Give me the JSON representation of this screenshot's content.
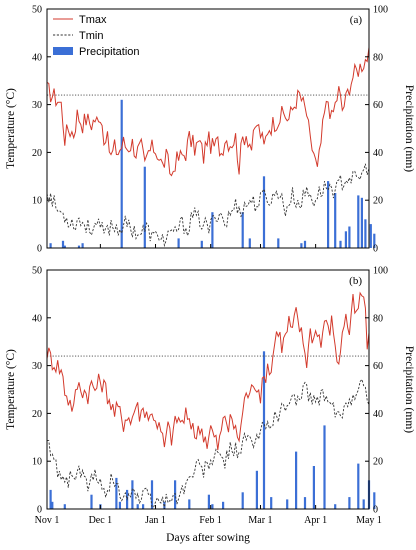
{
  "chart_data": [
    {
      "type": "line",
      "panel_label": "(a)",
      "ylabel": "Temperature (°C)",
      "y2label": "Precipitation (mm)",
      "ylim": [
        0,
        50
      ],
      "y2lim": [
        0,
        100
      ],
      "yticks": [
        "0",
        "10",
        "20",
        "30",
        "40",
        "50"
      ],
      "y2ticks": [
        "0",
        "20",
        "40",
        "60",
        "80",
        "100"
      ],
      "legend": [
        {
          "label": "Tmax",
          "color": "#d33a2c",
          "style": "solid"
        },
        {
          "label": "Tmin",
          "color": "#333333",
          "style": "dashed"
        },
        {
          "label": "Precipitation",
          "color": "#3b6fd6",
          "style": "bar"
        }
      ],
      "legend_position": "top-left",
      "reference_line": 32,
      "tmax_keypoints": [
        [
          0,
          33
        ],
        [
          3,
          32
        ],
        [
          6,
          31
        ],
        [
          8,
          30
        ],
        [
          10,
          23
        ],
        [
          12,
          25
        ],
        [
          15,
          24
        ],
        [
          17,
          28
        ],
        [
          20,
          26
        ],
        [
          22,
          27
        ],
        [
          25,
          26
        ],
        [
          27,
          27
        ],
        [
          29,
          26
        ],
        [
          30,
          28
        ],
        [
          31,
          27
        ],
        [
          32,
          22
        ],
        [
          33,
          24
        ],
        [
          36,
          19
        ],
        [
          38,
          21
        ],
        [
          40,
          20
        ],
        [
          43,
          22
        ],
        [
          45,
          21
        ],
        [
          48,
          22
        ],
        [
          50,
          20
        ],
        [
          53,
          21
        ],
        [
          55,
          17
        ],
        [
          57,
          20
        ],
        [
          60,
          21
        ],
        [
          62,
          20
        ],
        [
          65,
          17
        ],
        [
          67,
          19
        ],
        [
          70,
          15
        ],
        [
          72,
          18
        ],
        [
          75,
          19
        ],
        [
          78,
          20
        ],
        [
          80,
          23
        ],
        [
          83,
          21
        ],
        [
          86,
          22
        ],
        [
          88,
          19
        ],
        [
          90,
          23
        ],
        [
          93,
          21
        ],
        [
          96,
          22
        ],
        [
          98,
          20
        ],
        [
          100,
          23
        ],
        [
          103,
          22
        ],
        [
          106,
          23
        ],
        [
          108,
          17
        ],
        [
          110,
          23
        ],
        [
          112,
          24
        ],
        [
          115,
          21
        ],
        [
          118,
          26
        ],
        [
          120,
          24
        ],
        [
          122,
          21
        ],
        [
          124,
          25
        ],
        [
          127,
          26
        ],
        [
          130,
          27
        ],
        [
          133,
          28
        ],
        [
          136,
          27
        ],
        [
          138,
          29
        ],
        [
          140,
          31
        ],
        [
          142,
          32
        ],
        [
          144,
          30
        ],
        [
          146,
          28
        ],
        [
          148,
          22
        ],
        [
          150,
          20
        ],
        [
          152,
          16
        ],
        [
          154,
          22
        ],
        [
          156,
          28
        ],
        [
          158,
          31
        ],
        [
          160,
          27
        ],
        [
          162,
          30
        ],
        [
          164,
          33
        ],
        [
          166,
          29
        ],
        [
          168,
          31
        ],
        [
          170,
          34
        ],
        [
          172,
          36
        ],
        [
          174,
          37
        ],
        [
          176,
          38
        ],
        [
          178,
          39
        ],
        [
          180,
          40
        ]
      ],
      "tmin_keypoints": [
        [
          0,
          12
        ],
        [
          3,
          10
        ],
        [
          6,
          8
        ],
        [
          9,
          7
        ],
        [
          12,
          6
        ],
        [
          15,
          5
        ],
        [
          18,
          6
        ],
        [
          21,
          5
        ],
        [
          24,
          4
        ],
        [
          27,
          5
        ],
        [
          30,
          4
        ],
        [
          33,
          3
        ],
        [
          36,
          5
        ],
        [
          40,
          4
        ],
        [
          44,
          5
        ],
        [
          48,
          4
        ],
        [
          52,
          3
        ],
        [
          56,
          4
        ],
        [
          60,
          2
        ],
        [
          64,
          3
        ],
        [
          66,
          1
        ],
        [
          68,
          3
        ],
        [
          70,
          2
        ],
        [
          73,
          4
        ],
        [
          76,
          5
        ],
        [
          79,
          4
        ],
        [
          82,
          7
        ],
        [
          85,
          6
        ],
        [
          88,
          5
        ],
        [
          91,
          4
        ],
        [
          94,
          6
        ],
        [
          97,
          8
        ],
        [
          100,
          5
        ],
        [
          103,
          7
        ],
        [
          106,
          9
        ],
        [
          110,
          8
        ],
        [
          114,
          10
        ],
        [
          118,
          9
        ],
        [
          122,
          11
        ],
        [
          126,
          10
        ],
        [
          130,
          12
        ],
        [
          134,
          8
        ],
        [
          138,
          11
        ],
        [
          142,
          9
        ],
        [
          146,
          12
        ],
        [
          150,
          10
        ],
        [
          154,
          12
        ],
        [
          158,
          13
        ],
        [
          162,
          12
        ],
        [
          166,
          14
        ],
        [
          170,
          15
        ],
        [
          174,
          14
        ],
        [
          178,
          16
        ],
        [
          180,
          17
        ]
      ],
      "precip_mm": [
        [
          2,
          2
        ],
        [
          9,
          3
        ],
        [
          10,
          1
        ],
        [
          18,
          1
        ],
        [
          20,
          2
        ],
        [
          42,
          62
        ],
        [
          55,
          34
        ],
        [
          74,
          4
        ],
        [
          87,
          3
        ],
        [
          93,
          15
        ],
        [
          110,
          15
        ],
        [
          114,
          4
        ],
        [
          122,
          30
        ],
        [
          130,
          4
        ],
        [
          143,
          2
        ],
        [
          145,
          3
        ],
        [
          158,
          28
        ],
        [
          162,
          23
        ],
        [
          165,
          3
        ],
        [
          168,
          7
        ],
        [
          170,
          9
        ],
        [
          175,
          22
        ],
        [
          177,
          21
        ],
        [
          179,
          12
        ],
        [
          182,
          10
        ],
        [
          184,
          6
        ]
      ]
    },
    {
      "type": "line",
      "panel_label": "(b)",
      "ylabel": "Temperature (°C)",
      "y2label": "Precipitation (mm)",
      "ylim": [
        0,
        50
      ],
      "y2lim": [
        0,
        100
      ],
      "yticks": [
        "0",
        "10",
        "20",
        "30",
        "40",
        "50"
      ],
      "y2ticks": [
        "0",
        "20",
        "40",
        "60",
        "80",
        "100"
      ],
      "reference_line": 32,
      "tmax_keypoints": [
        [
          0,
          33
        ],
        [
          3,
          31
        ],
        [
          6,
          30
        ],
        [
          8,
          29
        ],
        [
          10,
          25
        ],
        [
          12,
          23
        ],
        [
          15,
          21
        ],
        [
          17,
          26
        ],
        [
          20,
          25
        ],
        [
          23,
          24
        ],
        [
          25,
          26
        ],
        [
          27,
          25
        ],
        [
          30,
          27
        ],
        [
          33,
          25
        ],
        [
          36,
          22
        ],
        [
          38,
          20
        ],
        [
          40,
          21
        ],
        [
          43,
          18
        ],
        [
          45,
          20
        ],
        [
          47,
          18
        ],
        [
          50,
          22
        ],
        [
          52,
          20
        ],
        [
          55,
          21
        ],
        [
          58,
          19
        ],
        [
          60,
          20
        ],
        [
          62,
          18
        ],
        [
          64,
          16
        ],
        [
          66,
          13
        ],
        [
          68,
          17
        ],
        [
          70,
          15
        ],
        [
          73,
          19
        ],
        [
          76,
          18
        ],
        [
          78,
          20
        ],
        [
          80,
          17
        ],
        [
          82,
          18
        ],
        [
          84,
          15
        ],
        [
          86,
          17
        ],
        [
          88,
          16
        ],
        [
          90,
          14
        ],
        [
          92,
          17
        ],
        [
          94,
          15
        ],
        [
          96,
          13
        ],
        [
          98,
          16
        ],
        [
          100,
          20
        ],
        [
          102,
          17
        ],
        [
          104,
          19
        ],
        [
          106,
          16
        ],
        [
          108,
          15
        ],
        [
          110,
          20
        ],
        [
          112,
          25
        ],
        [
          114,
          23
        ],
        [
          116,
          27
        ],
        [
          118,
          26
        ],
        [
          120,
          24
        ],
        [
          122,
          27
        ],
        [
          124,
          30
        ],
        [
          126,
          29
        ],
        [
          128,
          35
        ],
        [
          130,
          38
        ],
        [
          132,
          34
        ],
        [
          134,
          36
        ],
        [
          136,
          39
        ],
        [
          138,
          37
        ],
        [
          140,
          41
        ],
        [
          142,
          38
        ],
        [
          144,
          35
        ],
        [
          146,
          31
        ],
        [
          148,
          37
        ],
        [
          150,
          36
        ],
        [
          152,
          38
        ],
        [
          154,
          34
        ],
        [
          156,
          40
        ],
        [
          158,
          37
        ],
        [
          160,
          39
        ],
        [
          162,
          35
        ],
        [
          164,
          29
        ],
        [
          166,
          38
        ],
        [
          168,
          40
        ],
        [
          170,
          37
        ],
        [
          172,
          43
        ],
        [
          174,
          40
        ],
        [
          176,
          44
        ],
        [
          178,
          45
        ],
        [
          180,
          35
        ]
      ],
      "tmin_keypoints": [
        [
          0,
          14
        ],
        [
          3,
          11
        ],
        [
          6,
          8
        ],
        [
          9,
          7
        ],
        [
          12,
          6
        ],
        [
          15,
          7
        ],
        [
          18,
          8
        ],
        [
          21,
          6
        ],
        [
          24,
          5
        ],
        [
          27,
          7
        ],
        [
          30,
          5
        ],
        [
          33,
          4
        ],
        [
          36,
          6
        ],
        [
          40,
          4
        ],
        [
          44,
          3
        ],
        [
          48,
          4
        ],
        [
          52,
          2
        ],
        [
          56,
          3
        ],
        [
          60,
          1
        ],
        [
          63,
          2
        ],
        [
          66,
          1
        ],
        [
          68,
          3
        ],
        [
          72,
          2
        ],
        [
          76,
          4
        ],
        [
          80,
          6
        ],
        [
          84,
          9
        ],
        [
          88,
          8
        ],
        [
          92,
          10
        ],
        [
          96,
          11
        ],
        [
          100,
          10
        ],
        [
          104,
          13
        ],
        [
          108,
          12
        ],
        [
          112,
          15
        ],
        [
          116,
          13
        ],
        [
          120,
          16
        ],
        [
          124,
          18
        ],
        [
          128,
          19
        ],
        [
          132,
          21
        ],
        [
          136,
          22
        ],
        [
          140,
          23
        ],
        [
          144,
          25
        ],
        [
          148,
          24
        ],
        [
          152,
          22
        ],
        [
          156,
          24
        ],
        [
          160,
          21
        ],
        [
          164,
          19
        ],
        [
          168,
          22
        ],
        [
          172,
          24
        ],
        [
          176,
          26
        ],
        [
          178,
          27
        ],
        [
          180,
          22
        ]
      ],
      "precip_mm": [
        [
          2,
          8
        ],
        [
          3,
          3
        ],
        [
          10,
          2
        ],
        [
          25,
          6
        ],
        [
          30,
          2
        ],
        [
          39,
          13
        ],
        [
          41,
          3
        ],
        [
          45,
          8
        ],
        [
          48,
          12
        ],
        [
          51,
          2
        ],
        [
          54,
          2
        ],
        [
          59,
          12
        ],
        [
          66,
          3
        ],
        [
          72,
          12
        ],
        [
          80,
          4
        ],
        [
          91,
          6
        ],
        [
          93,
          2
        ],
        [
          99,
          3
        ],
        [
          110,
          7
        ],
        [
          118,
          16
        ],
        [
          122,
          66
        ],
        [
          126,
          5
        ],
        [
          135,
          4
        ],
        [
          140,
          24
        ],
        [
          145,
          5
        ],
        [
          150,
          18
        ],
        [
          156,
          35
        ],
        [
          162,
          2
        ],
        [
          170,
          5
        ],
        [
          175,
          19
        ],
        [
          178,
          4
        ],
        [
          181,
          12
        ],
        [
          184,
          7
        ]
      ]
    }
  ],
  "xaxis": {
    "label": "Days after sowing",
    "ticks": [
      {
        "day": 0,
        "label": "Nov 1"
      },
      {
        "day": 30,
        "label": "Dec 1"
      },
      {
        "day": 61,
        "label": "Jan 1"
      },
      {
        "day": 92,
        "label": "Feb 1"
      },
      {
        "day": 120,
        "label": "Mar 1"
      },
      {
        "day": 151,
        "label": "Apr 1"
      },
      {
        "day": 181,
        "label": "May 1"
      }
    ],
    "range": [
      0,
      181
    ]
  }
}
